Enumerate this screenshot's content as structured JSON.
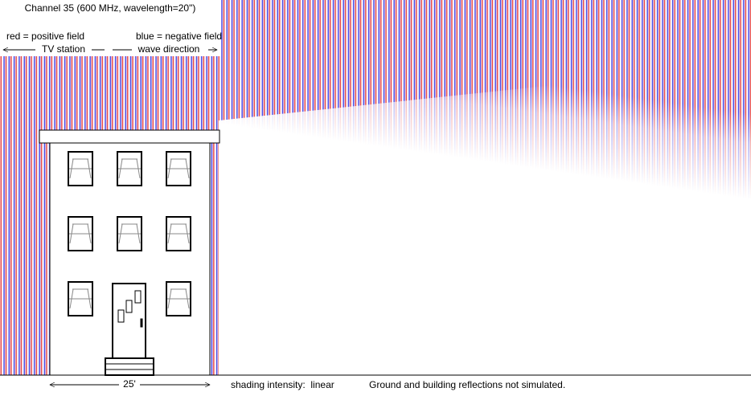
{
  "legend": {
    "title": "Channel 35 (600 MHz, wavelength=20\")",
    "positive": "red = positive field",
    "negative": "blue = negative field",
    "source": "TV station",
    "direction": "wave direction"
  },
  "scale_label": "25'",
  "shading": "shading intensity:  linear",
  "note": "Ground and building reflections not simulated."
}
